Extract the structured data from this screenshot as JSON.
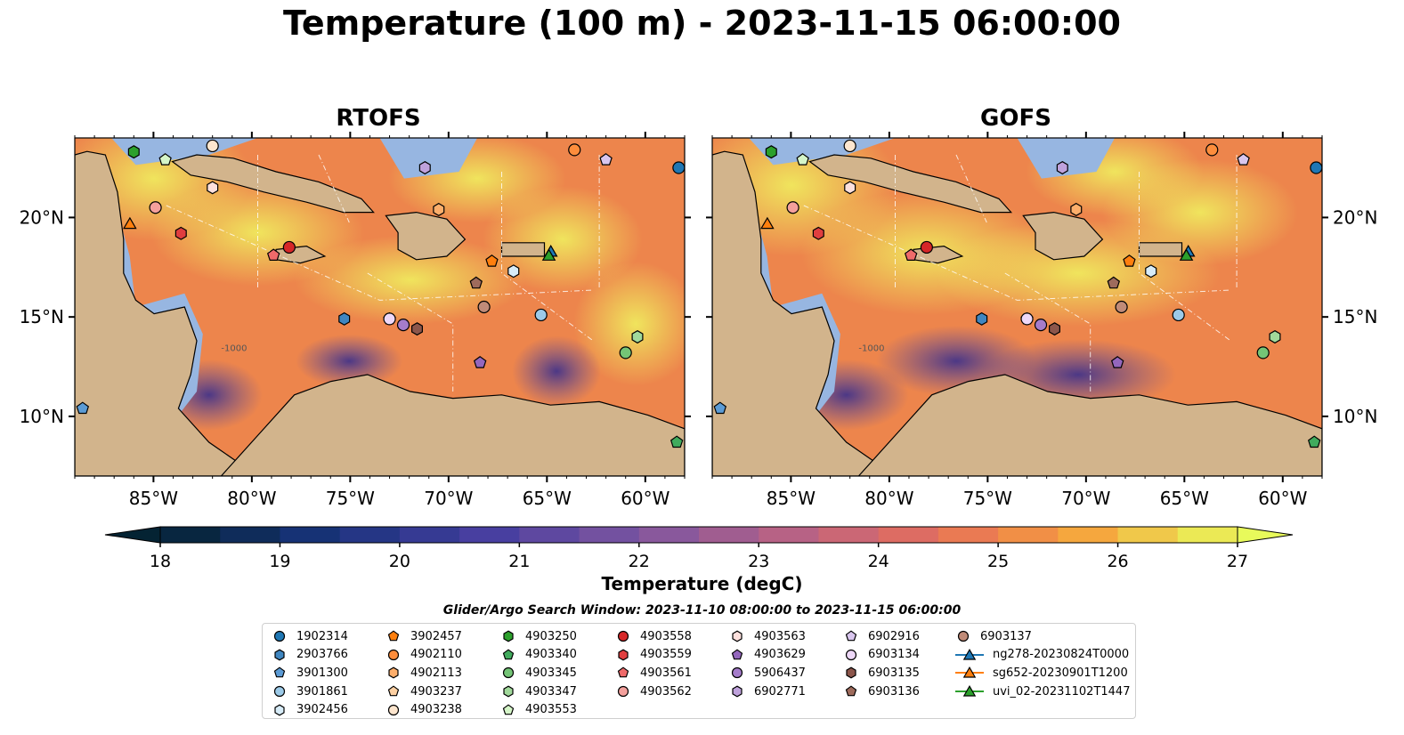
{
  "title": "Temperature (100 m) - 2023-11-15 06:00:00",
  "panels": [
    {
      "id": "rtofs",
      "title": "RTOFS"
    },
    {
      "id": "gofs",
      "title": "GOFS"
    }
  ],
  "map": {
    "lon_range": [
      -89,
      -58
    ],
    "lat_range": [
      7,
      24
    ],
    "lon_ticks": [
      -85,
      -80,
      -75,
      -70,
      -65,
      -60
    ],
    "lon_tick_labels": [
      "85°W",
      "80°W",
      "75°W",
      "70°W",
      "65°W",
      "60°W"
    ],
    "lat_ticks": [
      10,
      15,
      20
    ],
    "lat_tick_labels": [
      "10°N",
      "15°N",
      "20°N"
    ],
    "land_color": "#d2b48c",
    "shelf_color": "#97b6e1",
    "contour_label": "-1000"
  },
  "colorbar": {
    "label": "Temperature (degC)",
    "min": 18,
    "max": 27,
    "step": 0.5,
    "ticks": [
      18,
      19,
      20,
      21,
      22,
      23,
      24,
      25,
      26,
      27
    ],
    "tick_labels": [
      "18",
      "19",
      "20",
      "21",
      "22",
      "23",
      "24",
      "25",
      "26",
      "27"
    ],
    "colormap": "thermal",
    "extend": "both"
  },
  "legend": {
    "title": "Glider/Argo Search Window: 2023-11-10 08:00:00 to 2023-11-15 06:00:00",
    "columns": [
      [
        {
          "label": "1902314",
          "marker": "circle",
          "color": "#1f77b4"
        },
        {
          "label": "2903766",
          "marker": "hexagon",
          "color": "#3f86c0"
        },
        {
          "label": "3901300",
          "marker": "pentagon",
          "color": "#5b9bd5"
        },
        {
          "label": "3901861",
          "marker": "circle",
          "color": "#9ccae8"
        },
        {
          "label": "3902456",
          "marker": "hexagon",
          "color": "#d7ecf8"
        }
      ],
      [
        {
          "label": "3902457",
          "marker": "pentagon",
          "color": "#ff7f0e"
        },
        {
          "label": "4902110",
          "marker": "circle",
          "color": "#fd8d3c"
        },
        {
          "label": "4902113",
          "marker": "hexagon",
          "color": "#fdae6b"
        },
        {
          "label": "4903237",
          "marker": "pentagon",
          "color": "#fdd0a2"
        },
        {
          "label": "4903238",
          "marker": "circle",
          "color": "#fee6ce"
        }
      ],
      [
        {
          "label": "4903250",
          "marker": "hexagon",
          "color": "#2ca02c"
        },
        {
          "label": "4903340",
          "marker": "pentagon",
          "color": "#41ab5d"
        },
        {
          "label": "4903345",
          "marker": "circle",
          "color": "#74c476"
        },
        {
          "label": "4903347",
          "marker": "hexagon",
          "color": "#a1d99b"
        },
        {
          "label": "4903553",
          "marker": "pentagon",
          "color": "#d5f5c8"
        }
      ],
      [
        {
          "label": "4903558",
          "marker": "circle",
          "color": "#d62728"
        },
        {
          "label": "4903559",
          "marker": "hexagon",
          "color": "#e03e3f"
        },
        {
          "label": "4903561",
          "marker": "pentagon",
          "color": "#ef6a6a"
        },
        {
          "label": "4903562",
          "marker": "circle",
          "color": "#f4a09c"
        }
      ],
      [
        {
          "label": "4903563",
          "marker": "hexagon",
          "color": "#fde0dd"
        },
        {
          "label": "4903629",
          "marker": "pentagon",
          "color": "#9467bd"
        },
        {
          "label": "5906437",
          "marker": "circle",
          "color": "#a57ccb"
        },
        {
          "label": "6902771",
          "marker": "hexagon",
          "color": "#bfa2dc"
        }
      ],
      [
        {
          "label": "6902916",
          "marker": "pentagon",
          "color": "#d9c6ee"
        },
        {
          "label": "6903134",
          "marker": "circle",
          "color": "#eed8f8"
        },
        {
          "label": "6903135",
          "marker": "hexagon",
          "color": "#8c564b"
        },
        {
          "label": "6903136",
          "marker": "pentagon",
          "color": "#9e6b5c"
        }
      ],
      [
        {
          "label": "6903137",
          "marker": "circle",
          "color": "#c08b78"
        },
        {
          "label": "ng278-20230824T0000",
          "marker": "triangle-line",
          "color": "#1f77b4"
        },
        {
          "label": "sg652-20230901T1200",
          "marker": "triangle-line",
          "color": "#ff7f0e"
        },
        {
          "label": "uvi_02-20231102T1447",
          "marker": "triangle-line",
          "color": "#2ca02c"
        }
      ]
    ]
  },
  "observations": [
    {
      "id": "1902314",
      "lon": -58.3,
      "lat": 22.5
    },
    {
      "id": "2903766",
      "lon": -75.3,
      "lat": 14.9
    },
    {
      "id": "3901300",
      "lon": -88.6,
      "lat": 10.4
    },
    {
      "id": "3901861",
      "lon": -65.3,
      "lat": 15.1
    },
    {
      "id": "3902456",
      "lon": -66.7,
      "lat": 17.3
    },
    {
      "id": "3902457",
      "lon": -67.8,
      "lat": 17.8
    },
    {
      "id": "4902110",
      "lon": -63.6,
      "lat": 23.4
    },
    {
      "id": "4902113",
      "lon": -70.5,
      "lat": 20.4
    },
    {
      "id": "4903237",
      "lon": -73.0,
      "lat": 14.9
    },
    {
      "id": "4903238",
      "lon": -82.0,
      "lat": 23.6
    },
    {
      "id": "4903250",
      "lon": -86.0,
      "lat": 23.3
    },
    {
      "id": "4903340",
      "lon": -58.4,
      "lat": 8.7
    },
    {
      "id": "4903345",
      "lon": -61.0,
      "lat": 13.2
    },
    {
      "id": "4903347",
      "lon": -60.4,
      "lat": 14.0
    },
    {
      "id": "4903553",
      "lon": -84.4,
      "lat": 22.9
    },
    {
      "id": "4903558",
      "lon": -78.1,
      "lat": 18.5
    },
    {
      "id": "4903559",
      "lon": -83.6,
      "lat": 19.2
    },
    {
      "id": "4903561",
      "lon": -78.9,
      "lat": 18.1
    },
    {
      "id": "4903562",
      "lon": -84.9,
      "lat": 20.5
    },
    {
      "id": "4903563",
      "lon": -82.0,
      "lat": 21.5
    },
    {
      "id": "4903629",
      "lon": -68.4,
      "lat": 12.7
    },
    {
      "id": "5906437",
      "lon": -72.3,
      "lat": 14.6
    },
    {
      "id": "6902771",
      "lon": -71.2,
      "lat": 22.5
    },
    {
      "id": "6902916",
      "lon": -62.0,
      "lat": 22.9
    },
    {
      "id": "6903134",
      "lon": -73.0,
      "lat": 14.9
    },
    {
      "id": "6903135",
      "lon": -71.6,
      "lat": 14.4
    },
    {
      "id": "6903136",
      "lon": -68.6,
      "lat": 16.7
    },
    {
      "id": "6903137",
      "lon": -68.2,
      "lat": 15.5
    },
    {
      "id": "ng278-20230824T0000",
      "lon": -64.8,
      "lat": 18.3
    },
    {
      "id": "sg652-20230901T1200",
      "lon": -86.2,
      "lat": 19.7
    },
    {
      "id": "uvi_02-20231102T1447",
      "lon": -64.9,
      "lat": 18.1
    }
  ]
}
